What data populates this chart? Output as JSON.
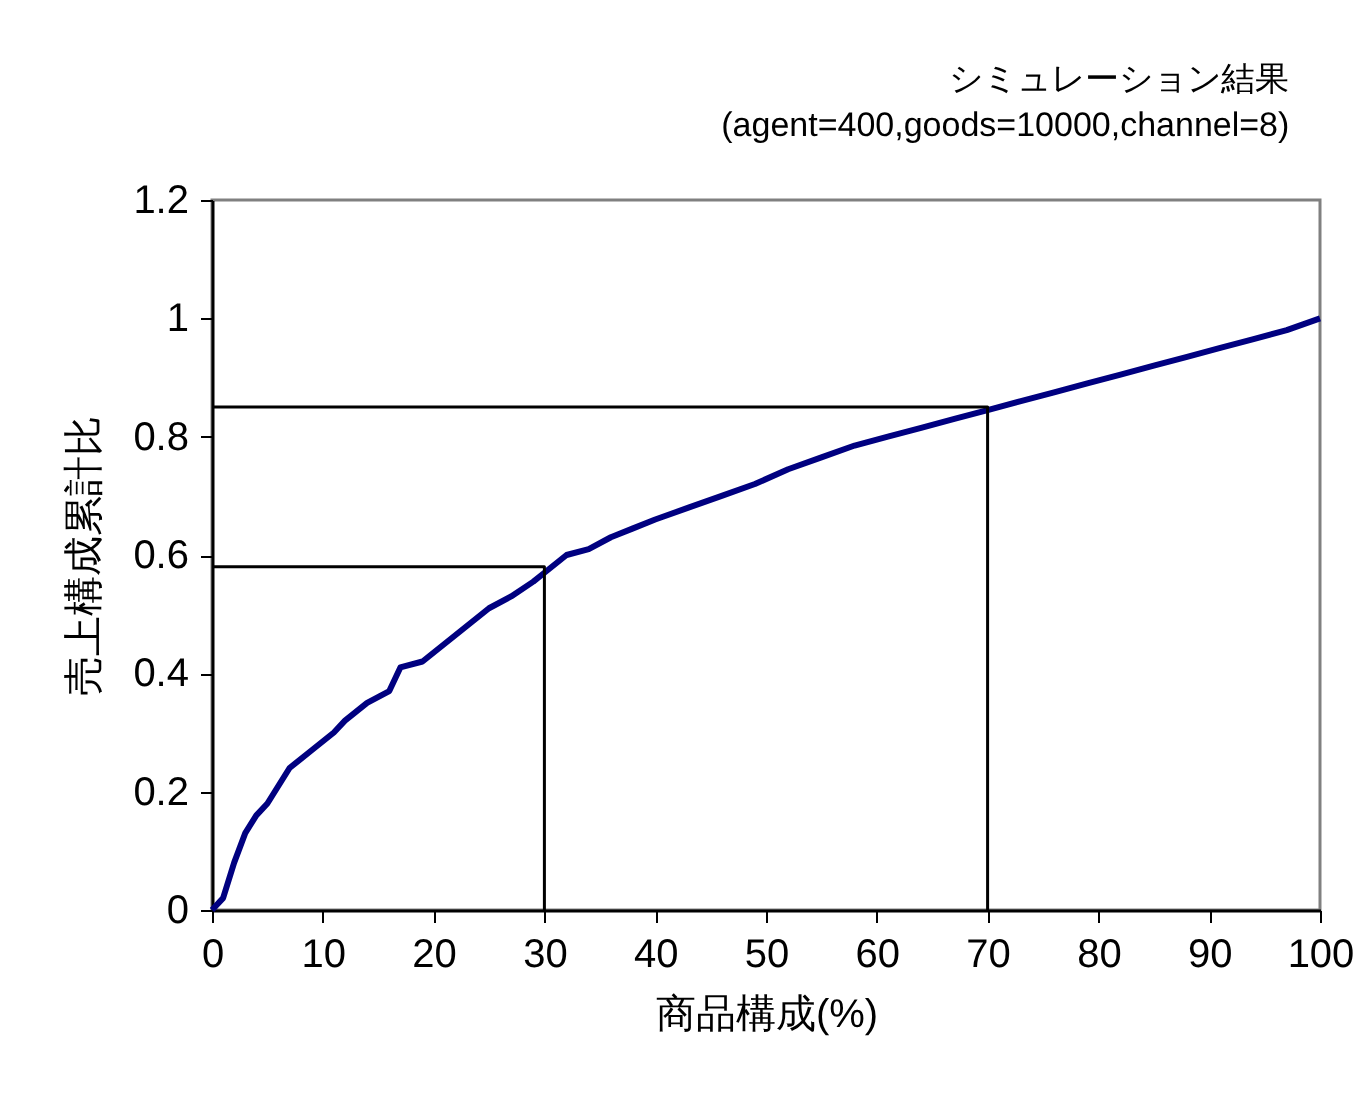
{
  "chart_data": {
    "type": "line",
    "title": "シミュレーション結果",
    "subtitle": "(agent=400,goods=10000,channel=8)",
    "xlabel": "商品構成(%)",
    "ylabel": "売上構成累計比",
    "x": [
      0,
      1,
      2,
      3,
      4,
      5,
      7,
      9,
      11,
      12,
      14,
      16,
      17,
      19,
      21,
      23,
      25,
      27,
      29,
      30,
      32,
      34,
      36,
      38,
      40,
      43,
      46,
      49,
      52,
      55,
      58,
      61,
      64,
      67,
      70,
      73,
      76,
      79,
      82,
      85,
      88,
      91,
      94,
      97,
      100
    ],
    "xlim": [
      0,
      100
    ],
    "xticks": [
      0,
      10,
      20,
      30,
      40,
      50,
      60,
      70,
      80,
      90,
      100
    ],
    "ylim": [
      0,
      1.2
    ],
    "yticks": [
      0,
      0.2,
      0.4,
      0.6,
      0.8,
      1,
      1.2
    ],
    "grid": false,
    "series": [
      {
        "color": "#000080",
        "values": [
          0,
          0.02,
          0.08,
          0.13,
          0.16,
          0.18,
          0.24,
          0.27,
          0.3,
          0.32,
          0.35,
          0.37,
          0.41,
          0.42,
          0.45,
          0.48,
          0.51,
          0.53,
          0.555,
          0.57,
          0.6,
          0.61,
          0.63,
          0.645,
          0.66,
          0.68,
          0.7,
          0.72,
          0.745,
          0.765,
          0.785,
          0.8,
          0.815,
          0.83,
          0.845,
          0.86,
          0.875,
          0.89,
          0.905,
          0.92,
          0.935,
          0.95,
          0.965,
          0.98,
          1.0
        ]
      },
      {
        "type": "line",
        "color": "#000000",
        "x": [
          0,
          30,
          30
        ],
        "values": [
          0.58,
          0.58,
          0
        ]
      },
      {
        "type": "line",
        "color": "#000000",
        "x": [
          0,
          70,
          70
        ],
        "values": [
          0.85,
          0.85,
          0
        ]
      }
    ]
  }
}
